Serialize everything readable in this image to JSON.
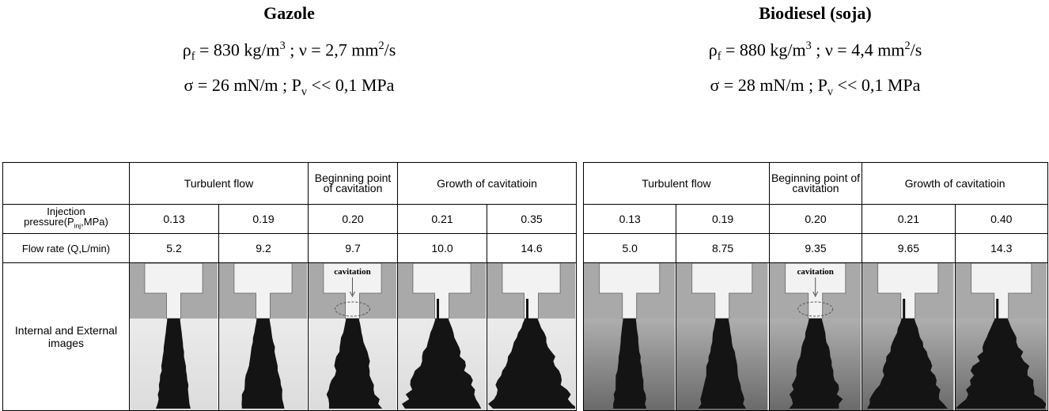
{
  "panels": [
    {
      "title": "Gazole",
      "properties": [
        [
          {
            "text": "ρ"
          },
          {
            "sub": "f"
          },
          {
            "text": " = 830 kg/m"
          },
          {
            "sup": "3"
          },
          {
            "text": " ; ν = 2,7 mm"
          },
          {
            "sup": "2"
          },
          {
            "text": "/s"
          }
        ],
        [
          {
            "text": "σ = 26 mN/m ; P"
          },
          {
            "sub": "v"
          },
          {
            "text": " << 0,1 MPa"
          }
        ]
      ],
      "table": {
        "groups": [
          {
            "label": "Turbulent flow",
            "span": 2
          },
          {
            "label": "Beginning point of cavitation",
            "span": 1
          },
          {
            "label": "Growth of cavitatioin",
            "span": 2
          }
        ],
        "rows": [
          {
            "label": [
              {
                "text": "Injection pressure(P"
              },
              {
                "sub": "inj"
              },
              {
                "text": ",MPa)"
              }
            ],
            "values": [
              "0.13",
              "0.19",
              "0.20",
              "0.21",
              "0.35"
            ]
          },
          {
            "label": [
              {
                "text": "Flow rate (Q,L/min)"
              }
            ],
            "values": [
              "5.2",
              "9.2",
              "9.7",
              "10.0",
              "14.6"
            ]
          }
        ],
        "image_row_label": "Internal and External images",
        "image_annotation": "cavitation"
      }
    },
    {
      "title": "Biodiesel (soja)",
      "properties": [
        [
          {
            "text": "ρ"
          },
          {
            "sub": "f"
          },
          {
            "text": " = 880 kg/m"
          },
          {
            "sup": "3"
          },
          {
            "text": " ; ν = 4,4 mm"
          },
          {
            "sup": "2"
          },
          {
            "text": "/s"
          }
        ],
        [
          {
            "text": "σ = 28 mN/m ; P"
          },
          {
            "sub": "v"
          },
          {
            "text": " << 0,1 MPa"
          }
        ]
      ],
      "table": {
        "groups": [
          {
            "label": "Turbulent flow",
            "span": 2
          },
          {
            "label": "Beginning point of cavitation",
            "span": 1
          },
          {
            "label": "Growth of cavitatioin",
            "span": 2
          }
        ],
        "rows": [
          {
            "values": [
              "0.13",
              "0.19",
              "0.20",
              "0.21",
              "0.40"
            ]
          },
          {
            "values": [
              "5.0",
              "8.75",
              "9.35",
              "9.65",
              "14.3"
            ]
          }
        ],
        "image_annotation": "cavitation"
      }
    }
  ]
}
